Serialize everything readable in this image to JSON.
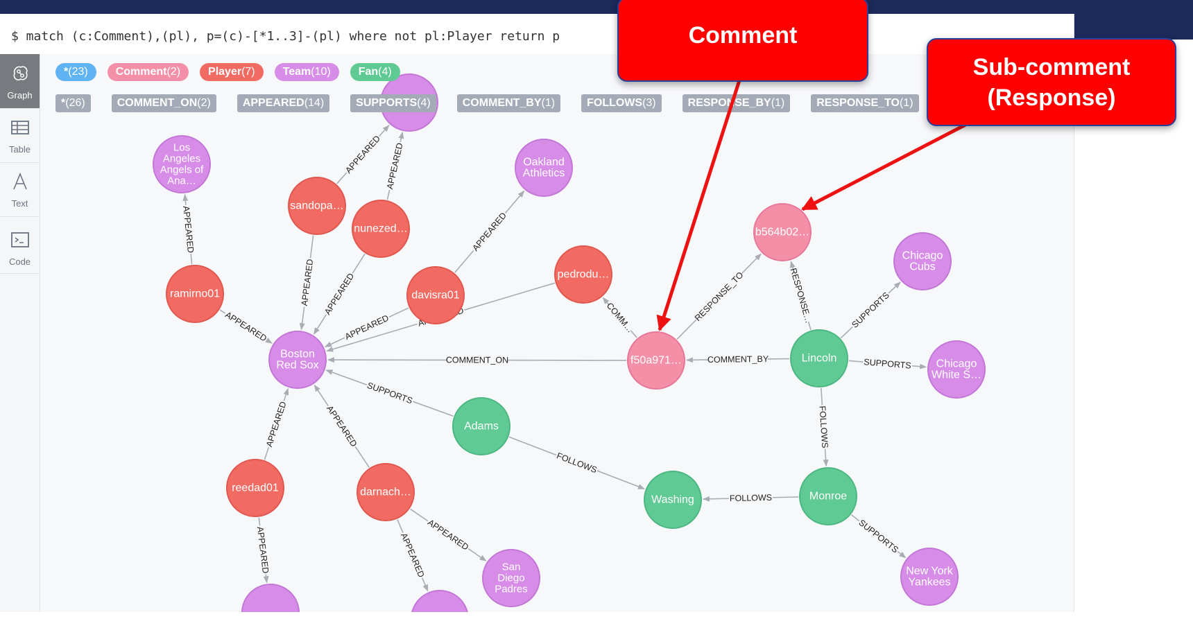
{
  "query": "$ match (c:Comment),(pl), p=(c)-[*1..3]-(pl) where not pl:Player return p",
  "sidebar": [
    {
      "label": "Graph",
      "icon": "graph-icon",
      "active": true
    },
    {
      "label": "Table",
      "icon": "table-icon",
      "active": false
    },
    {
      "label": "Text",
      "icon": "text-icon",
      "active": false
    },
    {
      "label": "Code",
      "icon": "code-icon",
      "active": false
    }
  ],
  "node_labels": [
    {
      "name": "*",
      "count": "(23)",
      "color": "#5fb3f2"
    },
    {
      "name": "Comment",
      "count": "(2)",
      "color": "#f48fa8"
    },
    {
      "name": "Player",
      "count": "(7)",
      "color": "#f26b63"
    },
    {
      "name": "Team",
      "count": "(10)",
      "color": "#d78de8"
    },
    {
      "name": "Fan",
      "count": "(4)",
      "color": "#5fca93"
    }
  ],
  "rel_types": [
    {
      "name": "*",
      "count": "(26)"
    },
    {
      "name": "COMMENT_ON",
      "count": "(2)"
    },
    {
      "name": "APPEARED",
      "count": "(14)"
    },
    {
      "name": "SUPPORTS",
      "count": "(4)"
    },
    {
      "name": "COMMENT_BY",
      "count": "(1)"
    },
    {
      "name": "FOLLOWS",
      "count": "(3)"
    },
    {
      "name": "RESPONSE_BY",
      "count": "(1)"
    },
    {
      "name": "RESPONSE_TO",
      "count": "(1)"
    }
  ],
  "colors": {
    "Comment": "#f48fa8",
    "Player": "#f26b63",
    "Team": "#d78de8",
    "Fan": "#5fca93",
    "edge": "#a8acb3"
  },
  "nodes": [
    {
      "id": "angels",
      "type": "Team",
      "lines": [
        "Los",
        "Angeles",
        "Angels of",
        "Ana…"
      ]
    },
    {
      "id": "sandopa",
      "type": "Player",
      "lines": [
        "sandopa…"
      ]
    },
    {
      "id": "nunezed",
      "type": "Player",
      "lines": [
        "nunezed…"
      ]
    },
    {
      "id": "oakland",
      "type": "Team",
      "lines": [
        "Oakland",
        "Athletics"
      ]
    },
    {
      "id": "ramirno01",
      "type": "Player",
      "lines": [
        "ramirno01"
      ]
    },
    {
      "id": "davisra01",
      "type": "Player",
      "lines": [
        "davisra01"
      ]
    },
    {
      "id": "pedrodu",
      "type": "Player",
      "lines": [
        "pedrodu…"
      ]
    },
    {
      "id": "b564b02",
      "type": "Comment",
      "lines": [
        "b564b02…"
      ]
    },
    {
      "id": "cubs",
      "type": "Team",
      "lines": [
        "Chicago",
        "Cubs"
      ]
    },
    {
      "id": "redsox",
      "type": "Team",
      "lines": [
        "Boston",
        "Red Sox"
      ]
    },
    {
      "id": "f50a971",
      "type": "Comment",
      "lines": [
        "f50a971…"
      ]
    },
    {
      "id": "lincoln",
      "type": "Fan",
      "lines": [
        "Lincoln"
      ]
    },
    {
      "id": "whitesox",
      "type": "Team",
      "lines": [
        "Chicago",
        "White S…"
      ]
    },
    {
      "id": "adams",
      "type": "Fan",
      "lines": [
        "Adams"
      ]
    },
    {
      "id": "reedad01",
      "type": "Player",
      "lines": [
        "reedad01"
      ]
    },
    {
      "id": "darnach",
      "type": "Player",
      "lines": [
        "darnach…"
      ]
    },
    {
      "id": "washing",
      "type": "Fan",
      "lines": [
        "Washing"
      ]
    },
    {
      "id": "monroe",
      "type": "Fan",
      "lines": [
        "Monroe"
      ]
    },
    {
      "id": "padres",
      "type": "Team",
      "lines": [
        "San",
        "Diego",
        "Padres"
      ]
    },
    {
      "id": "yankees",
      "type": "Team",
      "lines": [
        "New York",
        "Yankees"
      ]
    },
    {
      "id": "team_a",
      "type": "Team",
      "lines": []
    },
    {
      "id": "team_b",
      "type": "Team",
      "lines": []
    },
    {
      "id": "team_c",
      "type": "Team",
      "lines": []
    }
  ],
  "edges": [
    {
      "from": "ramirno01",
      "to": "angels",
      "label": "APPEARED"
    },
    {
      "from": "sandopa",
      "to": "team_a",
      "label": "APPEARED"
    },
    {
      "from": "nunezed",
      "to": "team_a",
      "label": "APPEARED"
    },
    {
      "from": "sandopa",
      "to": "redsox",
      "label": "APPEARED"
    },
    {
      "from": "nunezed",
      "to": "redsox",
      "label": "APPEARED"
    },
    {
      "from": "davisra01",
      "to": "oakland",
      "label": "APPEARED"
    },
    {
      "from": "ramirno01",
      "to": "redsox",
      "label": "APPEARED"
    },
    {
      "from": "davisra01",
      "to": "redsox",
      "label": "APPEARED"
    },
    {
      "from": "pedrodu",
      "to": "redsox",
      "label": "APPEARED"
    },
    {
      "from": "f50a971",
      "to": "redsox",
      "label": "COMMENT_ON"
    },
    {
      "from": "f50a971",
      "to": "pedrodu",
      "label": "COMM…"
    },
    {
      "from": "f50a971",
      "to": "b564b02",
      "label": "RESPONSE_TO"
    },
    {
      "from": "lincoln",
      "to": "b564b02",
      "label": "RESPONSE…"
    },
    {
      "from": "lincoln",
      "to": "f50a971",
      "label": "COMMENT_BY"
    },
    {
      "from": "lincoln",
      "to": "cubs",
      "label": "SUPPORTS"
    },
    {
      "from": "lincoln",
      "to": "whitesox",
      "label": "SUPPORTS"
    },
    {
      "from": "lincoln",
      "to": "monroe",
      "label": "FOLLOWS"
    },
    {
      "from": "adams",
      "to": "redsox",
      "label": "SUPPORTS"
    },
    {
      "from": "adams",
      "to": "washing",
      "label": "FOLLOWS"
    },
    {
      "from": "monroe",
      "to": "washing",
      "label": "FOLLOWS"
    },
    {
      "from": "monroe",
      "to": "yankees",
      "label": "SUPPORTS"
    },
    {
      "from": "reedad01",
      "to": "redsox",
      "label": "APPEARED"
    },
    {
      "from": "darnach",
      "to": "redsox",
      "label": "APPEARED"
    },
    {
      "from": "darnach",
      "to": "padres",
      "label": "APPEARED"
    },
    {
      "from": "darnach",
      "to": "team_c",
      "label": "APPEARED"
    },
    {
      "from": "reedad01",
      "to": "team_b",
      "label": "APPEARED"
    }
  ],
  "callouts": [
    {
      "id": "comment",
      "lines": [
        "Comment"
      ],
      "target": "f50a971"
    },
    {
      "id": "subcomment",
      "lines": [
        "Sub-comment",
        "(Response)"
      ],
      "target": "b564b02"
    }
  ]
}
